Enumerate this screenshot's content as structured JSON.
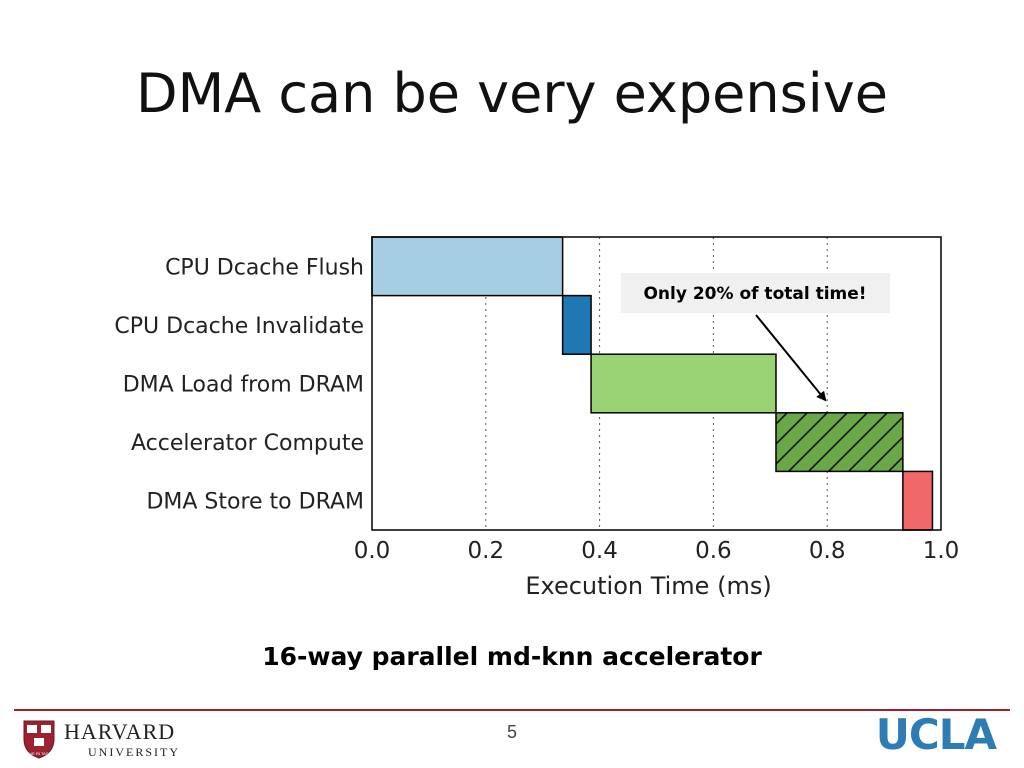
{
  "slide": {
    "title": "DMA can be very expensive",
    "caption": "16-way parallel md-knn accelerator",
    "page_number": "5"
  },
  "footer": {
    "left_logo": {
      "name": "HARVARD",
      "sub": "UNIVERSITY",
      "shield": "VE RI TAS"
    },
    "right_logo": "UCLA"
  },
  "colors": {
    "footer_line": "#9b2230",
    "ucla_blue": "#2d7cb4"
  },
  "chart_data": {
    "type": "bar",
    "orientation": "horizontal-timeline",
    "categories": [
      "CPU Dcache Flush",
      "CPU Dcache Invalidate",
      "DMA Load from DRAM",
      "Accelerator Compute",
      "DMA Store to DRAM"
    ],
    "segments": [
      {
        "label": "CPU Dcache Flush",
        "start": 0.0,
        "end": 0.335,
        "color": "#a6cee3",
        "hatch": false
      },
      {
        "label": "CPU Dcache Invalidate",
        "start": 0.335,
        "end": 0.385,
        "color": "#1f78b4",
        "hatch": false
      },
      {
        "label": "DMA Load from DRAM",
        "start": 0.385,
        "end": 0.71,
        "color": "#99d374",
        "hatch": false
      },
      {
        "label": "Accelerator Compute",
        "start": 0.71,
        "end": 0.933,
        "color": "#6aa847",
        "hatch": true
      },
      {
        "label": "DMA Store to DRAM",
        "start": 0.933,
        "end": 0.985,
        "color": "#f06868",
        "hatch": false
      }
    ],
    "xlabel": "Execution Time (ms)",
    "xlim": [
      0.0,
      1.0
    ],
    "xticks": [
      "0.0",
      "0.2",
      "0.4",
      "0.6",
      "0.8",
      "1.0"
    ],
    "grid": "vertical dotted",
    "annotation": {
      "text": "Only 20% of total time!",
      "points_to_x": 0.8
    }
  }
}
